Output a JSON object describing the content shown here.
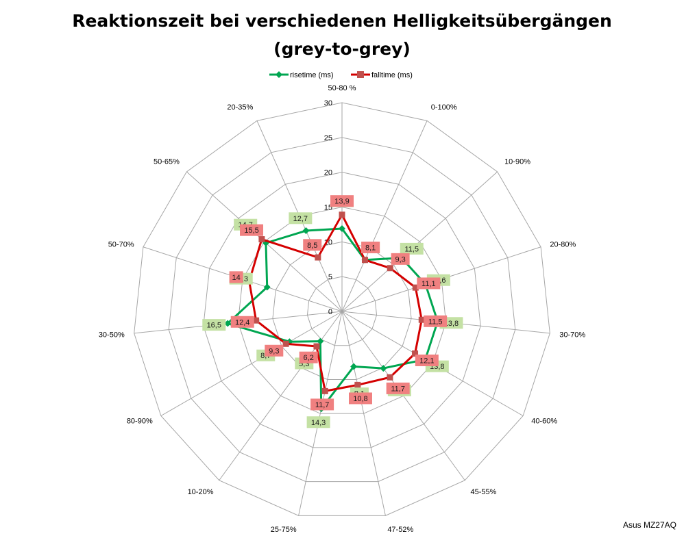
{
  "chart_data": {
    "type": "radar",
    "title": "Reaktionszeit bei verschiedenen Helligkeitsübergängen",
    "subtitle": "(grey-to-grey)",
    "categories": [
      "50-80 %",
      "0-100%",
      "10-90%",
      "20-80%",
      "30-70%",
      "40-60%",
      "45-55%",
      "47-52%",
      "25-75%",
      "10-20%",
      "80-90%",
      "30-50%",
      "50-70%",
      "50-65%",
      "20-35%"
    ],
    "r_axis": {
      "min": 0,
      "max": 30,
      "step": 5,
      "ticks": [
        "0",
        "5",
        "10",
        "15",
        "20",
        "25",
        "30"
      ]
    },
    "grid": true,
    "legend_position": "top",
    "series": [
      {
        "name": "risetime (ms)",
        "color": "#00a651",
        "marker": "diamond",
        "values": [
          11.9,
          8.1,
          11.5,
          12.6,
          13.8,
          13.8,
          10.1,
          8.1,
          14.3,
          5.3,
          8.7,
          16.5,
          11.3,
          14.7,
          12.7
        ],
        "labels": [
          "11,9",
          "8,1",
          "11,5",
          "12,6",
          "13,8",
          "13,8",
          "10,1",
          "8,1",
          "14,3",
          "5,3",
          "8,7",
          "16,5",
          "11,3",
          "14,7",
          "12,7"
        ],
        "label_color": "#c4e1a4"
      },
      {
        "name": "falltime (ms)",
        "color": "#d40000",
        "marker": "square",
        "values": [
          13.9,
          8.1,
          9.3,
          11.1,
          11.5,
          12.1,
          11.7,
          10.8,
          11.7,
          6.2,
          9.3,
          12.4,
          14,
          15.5,
          8.5
        ],
        "labels": [
          "13,9",
          "8,1",
          "9,3",
          "11,1",
          "11,5",
          "12,1",
          "11,7",
          "10,8",
          "11,7",
          "6,2",
          "9,3",
          "12,4",
          "14",
          "15,5",
          "8,5"
        ],
        "label_color": "#f08080"
      }
    ],
    "annotation": "Asus MZ27AQ"
  }
}
